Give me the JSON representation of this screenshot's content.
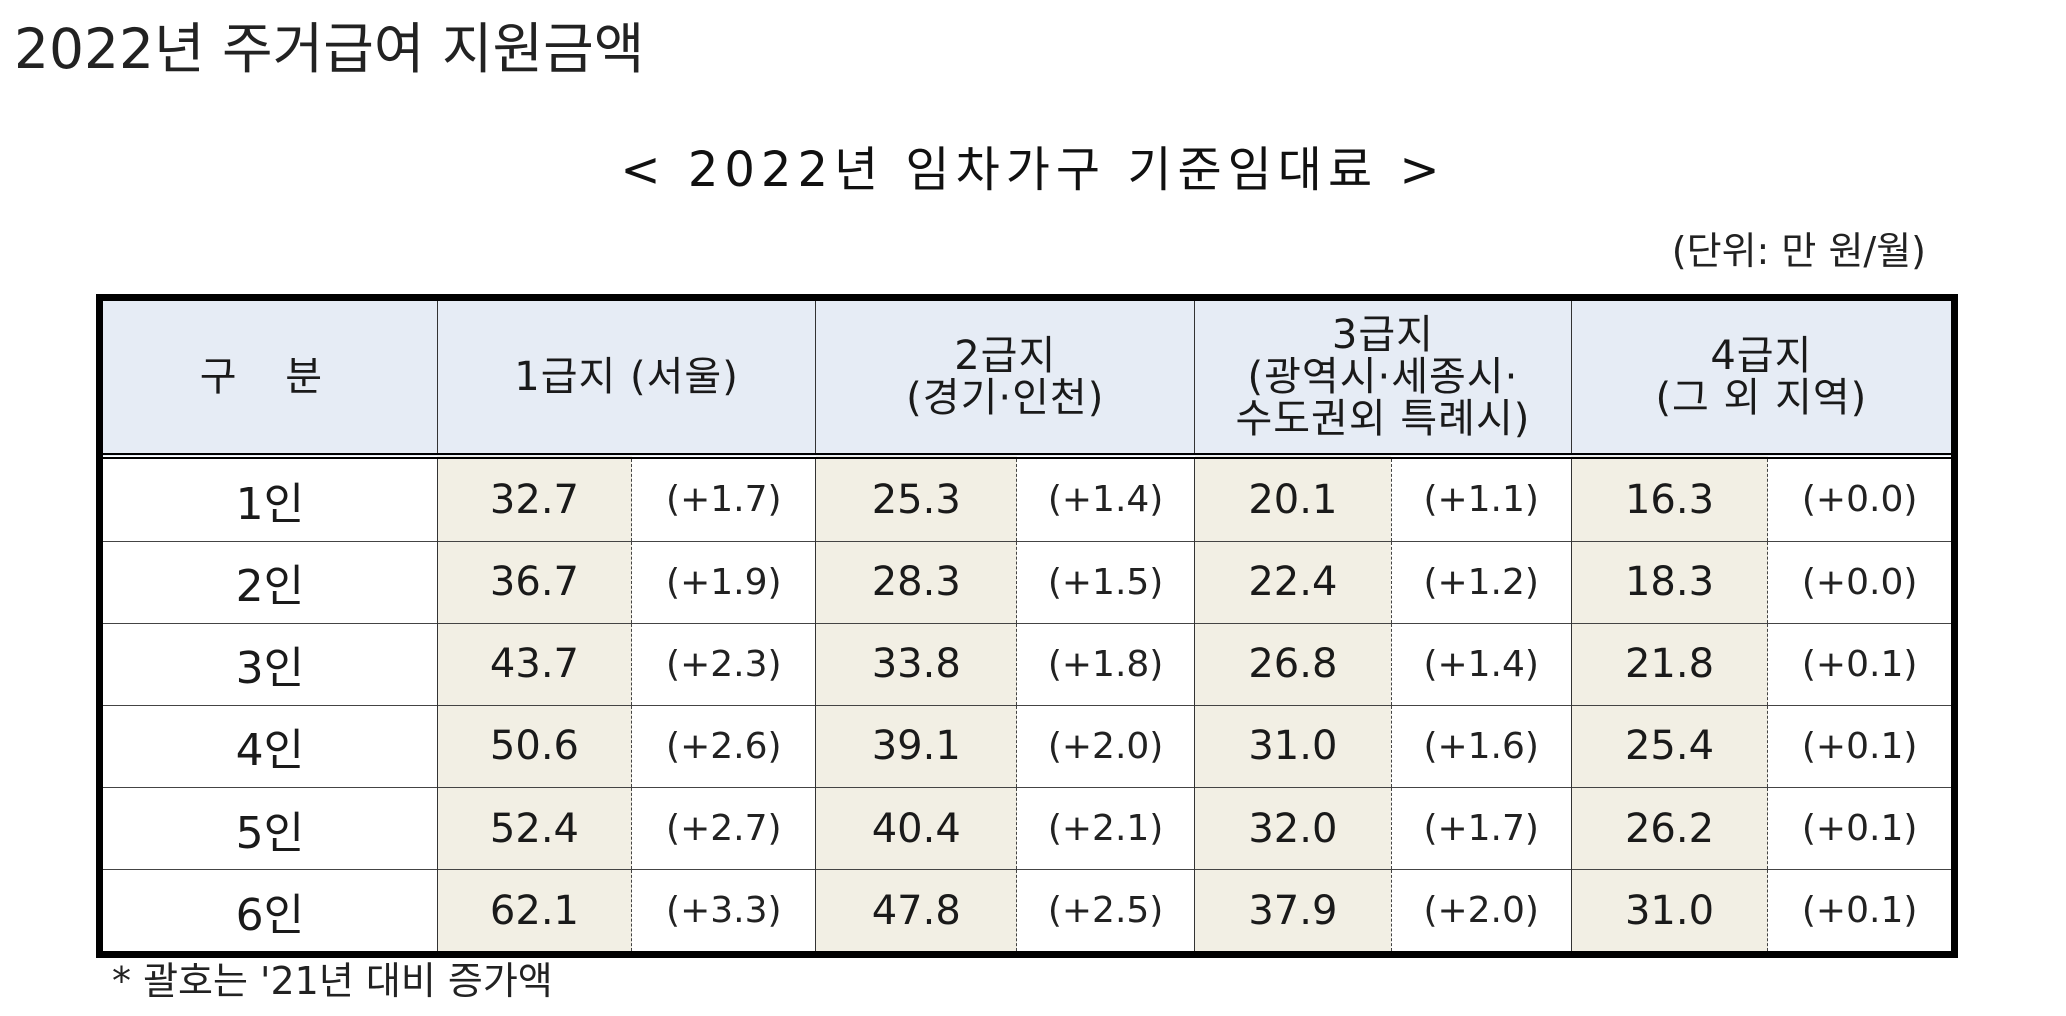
{
  "page": {
    "heading": "2022년 주거급여 지원금액"
  },
  "table": {
    "title": "< 2022년 임차가구 기준임대료 >",
    "unit": "(단위: 만 원/월)",
    "headers": {
      "category": "구 분",
      "zone1": "1급지 (서울)",
      "zone2_line1": "2급지",
      "zone2_line2": "(경기·인천)",
      "zone3_line1": "3급지",
      "zone3_line2": "(광역시·세종시·",
      "zone3_line3": "수도권외 특례시)",
      "zone4_line1": "4급지",
      "zone4_line2": "(그 외 지역)"
    },
    "rows": [
      {
        "label": "1인",
        "cells": [
          {
            "value": "32.7",
            "inc": "(+1.7)"
          },
          {
            "value": "25.3",
            "inc": "(+1.4)"
          },
          {
            "value": "20.1",
            "inc": "(+1.1)"
          },
          {
            "value": "16.3",
            "inc": "(+0.0)"
          }
        ]
      },
      {
        "label": "2인",
        "cells": [
          {
            "value": "36.7",
            "inc": "(+1.9)"
          },
          {
            "value": "28.3",
            "inc": "(+1.5)"
          },
          {
            "value": "22.4",
            "inc": "(+1.2)"
          },
          {
            "value": "18.3",
            "inc": "(+0.0)"
          }
        ]
      },
      {
        "label": "3인",
        "cells": [
          {
            "value": "43.7",
            "inc": "(+2.3)"
          },
          {
            "value": "33.8",
            "inc": "(+1.8)"
          },
          {
            "value": "26.8",
            "inc": "(+1.4)"
          },
          {
            "value": "21.8",
            "inc": "(+0.1)"
          }
        ]
      },
      {
        "label": "4인",
        "cells": [
          {
            "value": "50.6",
            "inc": "(+2.6)"
          },
          {
            "value": "39.1",
            "inc": "(+2.0)"
          },
          {
            "value": "31.0",
            "inc": "(+1.6)"
          },
          {
            "value": "25.4",
            "inc": "(+0.1)"
          }
        ]
      },
      {
        "label": "5인",
        "cells": [
          {
            "value": "52.4",
            "inc": "(+2.7)"
          },
          {
            "value": "40.4",
            "inc": "(+2.1)"
          },
          {
            "value": "32.0",
            "inc": "(+1.7)"
          },
          {
            "value": "26.2",
            "inc": "(+0.1)"
          }
        ]
      },
      {
        "label": "6인",
        "cells": [
          {
            "value": "62.1",
            "inc": "(+3.3)"
          },
          {
            "value": "47.8",
            "inc": "(+2.5)"
          },
          {
            "value": "37.9",
            "inc": "(+2.0)"
          },
          {
            "value": "31.0",
            "inc": "(+0.1)"
          }
        ]
      }
    ],
    "footnote": "* 괄호는 '21년 대비 증가액"
  },
  "colors": {
    "header_bg": "#e6ecf5",
    "value_bg": "#f2efe4",
    "border": "#000000"
  }
}
